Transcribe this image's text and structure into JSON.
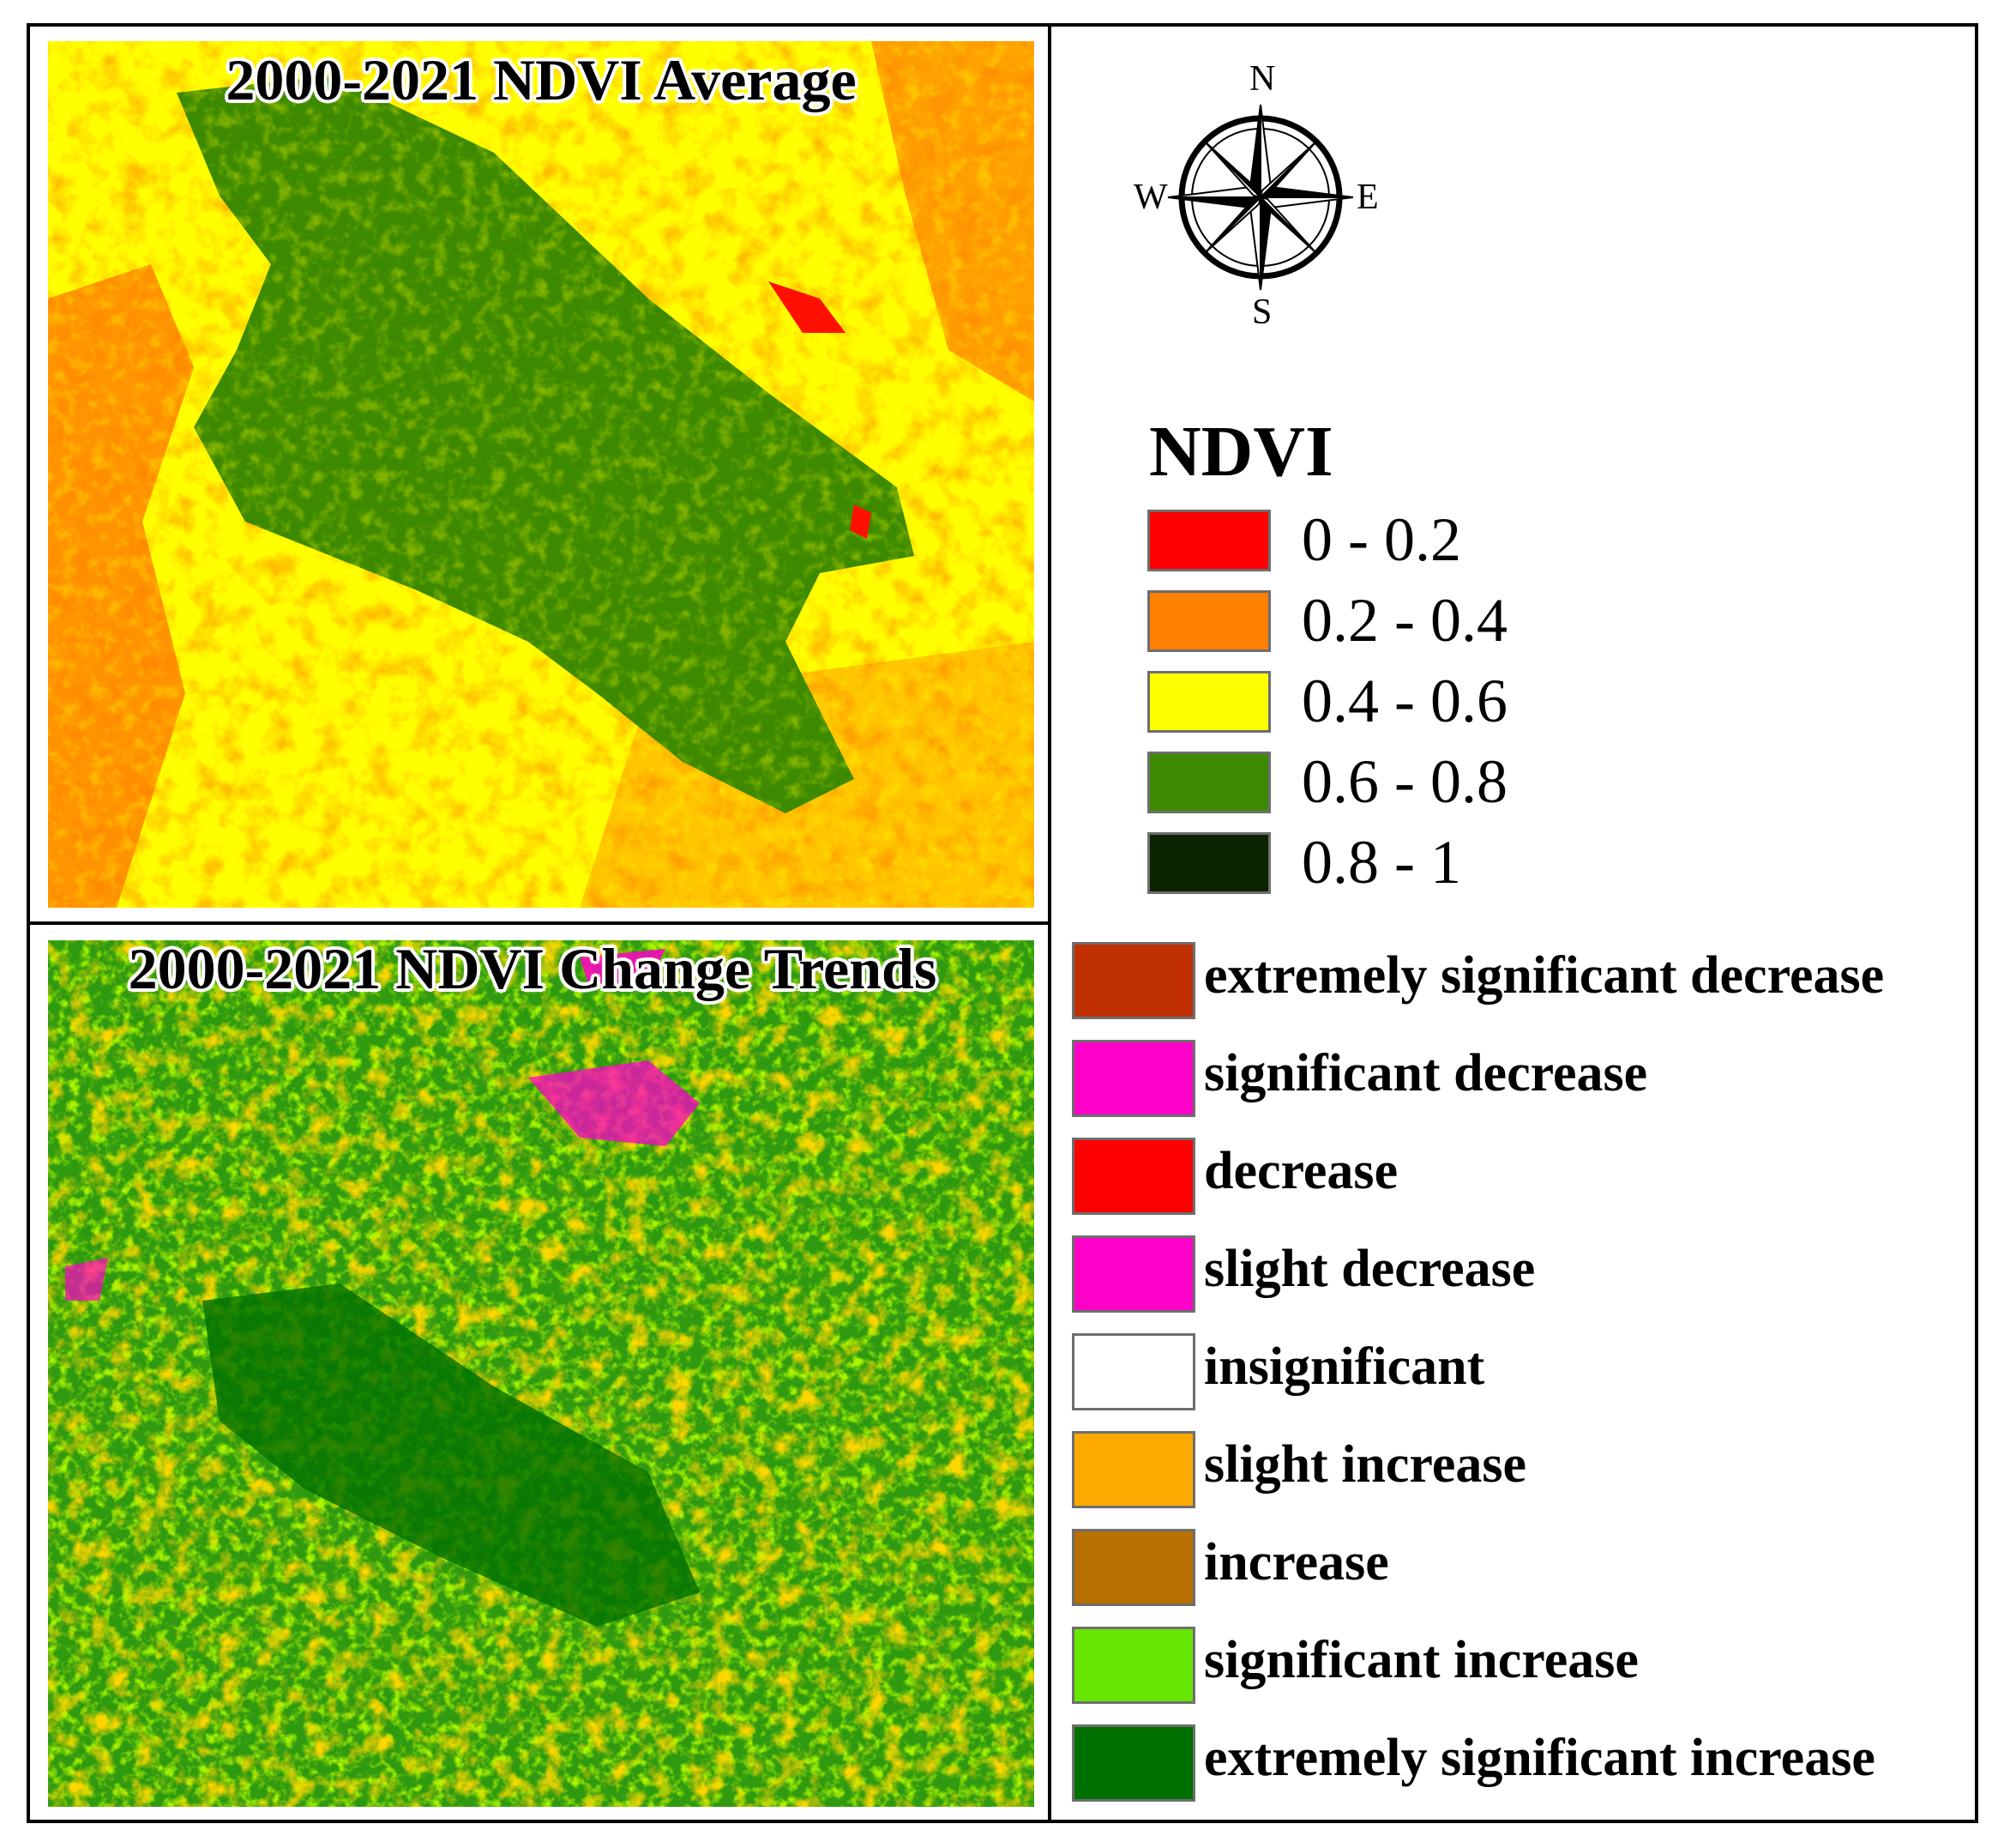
{
  "maps": {
    "top": {
      "title": "2000-2021 NDVI Average"
    },
    "bottom": {
      "title": "2000-2021 NDVI Change Trends"
    }
  },
  "compass": {
    "n": "N",
    "s": "S",
    "e": "E",
    "w": "W",
    "icon": "compass-rose-icon"
  },
  "ndvi_legend": {
    "title": "NDVI",
    "classes": [
      {
        "label": "0 - 0.2",
        "color": "#ff0000"
      },
      {
        "label": "0.2 - 0.4",
        "color": "#ff8000"
      },
      {
        "label": "0.4 - 0.6",
        "color": "#ffff00"
      },
      {
        "label": "0.6 - 0.8",
        "color": "#3d8a00"
      },
      {
        "label": "0.8 - 1",
        "color": "#0a2400"
      }
    ]
  },
  "trend_legend": {
    "classes": [
      {
        "label": "extremely significant decrease",
        "color": "#c03000"
      },
      {
        "label": "significant decrease",
        "color": "#ff00c8"
      },
      {
        "label": "decrease",
        "color": "#ff0000"
      },
      {
        "label": "slight decrease",
        "color": "#ff00c8"
      },
      {
        "label": "insignificant",
        "color": "#ffffff"
      },
      {
        "label": "slight increase",
        "color": "#ffaa00"
      },
      {
        "label": "increase",
        "color": "#b87000"
      },
      {
        "label": "significant increase",
        "color": "#66e600"
      },
      {
        "label": "extremely significant increase",
        "color": "#007000"
      }
    ]
  }
}
